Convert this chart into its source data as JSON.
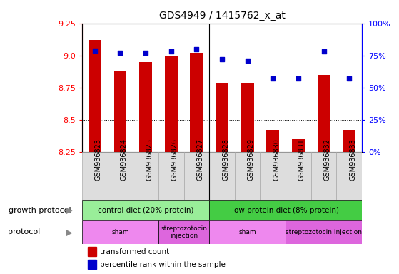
{
  "title": "GDS4949 / 1415762_x_at",
  "samples": [
    "GSM936823",
    "GSM936824",
    "GSM936825",
    "GSM936826",
    "GSM936827",
    "GSM936828",
    "GSM936829",
    "GSM936830",
    "GSM936831",
    "GSM936832",
    "GSM936833"
  ],
  "transformed_count": [
    9.12,
    8.88,
    8.95,
    9.0,
    9.02,
    8.78,
    8.78,
    8.42,
    8.35,
    8.85,
    8.42
  ],
  "percentile_rank": [
    79,
    77,
    77,
    78,
    80,
    72,
    71,
    57,
    57,
    78,
    57
  ],
  "ylim": [
    8.25,
    9.25
  ],
  "y_ticks": [
    8.25,
    8.5,
    8.75,
    9.0,
    9.25
  ],
  "right_yticks": [
    0,
    25,
    50,
    75,
    100
  ],
  "right_ytick_labels": [
    "0%",
    "25%",
    "50%",
    "75%",
    "100%"
  ],
  "bar_color": "#cc0000",
  "dot_color": "#0000cc",
  "bar_bottom": 8.25,
  "grid_lines": [
    8.5,
    8.75,
    9.0
  ],
  "growth_protocol_groups": [
    {
      "label": "control diet (20% protein)",
      "start": 0,
      "end": 5,
      "color": "#99ee99"
    },
    {
      "label": "low protein diet (8% protein)",
      "start": 5,
      "end": 11,
      "color": "#44cc44"
    }
  ],
  "protocol_groups": [
    {
      "label": "sham",
      "start": 0,
      "end": 3,
      "color": "#ee88ee"
    },
    {
      "label": "streptozotocin\ninjection",
      "start": 3,
      "end": 5,
      "color": "#dd66dd"
    },
    {
      "label": "sham",
      "start": 5,
      "end": 8,
      "color": "#ee88ee"
    },
    {
      "label": "streptozotocin injection",
      "start": 8,
      "end": 11,
      "color": "#dd66dd"
    }
  ],
  "legend_items": [
    {
      "label": "transformed count",
      "color": "#cc0000"
    },
    {
      "label": "percentile rank within the sample",
      "color": "#0000cc"
    }
  ],
  "xlim_left": -0.5,
  "xlim_right": 10.5,
  "sample_bg_color": "#dddddd",
  "separator_x": 4.5
}
